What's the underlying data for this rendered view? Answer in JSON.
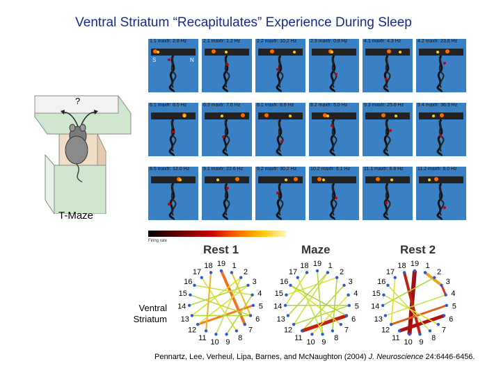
{
  "title": "Ventral Striatum “Recapitulates” Experience During Sleep",
  "maze_label": "T-Maze",
  "maze_question": "?",
  "grid_direction_labels": [
    "S",
    "N"
  ],
  "place_cells": [
    "1.1 maxfr: 2.8 Hz",
    "2.1 maxfr: 1.2 Hz",
    "2.2 maxfr: 10.2 Hz",
    "2.3 maxfr: 0.8 Hz",
    "4.1 maxfr: 4.3 Hz",
    "4.2 maxfr: 23.6 Hz",
    "6.1 maxfr: 8.5 Hz",
    "6.3 maxfr: 7.6 Hz",
    "8.1 maxfr: 8.8 Hz",
    "8.2 maxfr: 5.0 Hz",
    "9.3 maxfr: 25.6 Hz",
    "9.4 maxfr: 36.3 Hz",
    "8.5 maxfr: 12.0 Hz",
    "9.1 maxfr: 22.6 Hz",
    "9.2 maxfr: 30.2 Hz",
    "10.2 maxfr: 6.1 Hz",
    "11.1 maxfr: 6.8 Hz",
    "11.2 maxfr: 6.0 Hz"
  ],
  "colorbar_label": "Firing rate",
  "networks": [
    "Rest 1",
    "Maze",
    "Rest 2"
  ],
  "ventral_striatum_label": [
    "Ventral",
    "Striatum"
  ],
  "cell_numbers": [
    "19",
    "1",
    "2",
    "3",
    "4",
    "5",
    "6",
    "7",
    "8",
    "9",
    "10",
    "11",
    "12",
    "13",
    "14",
    "15",
    "16",
    "17",
    "18"
  ],
  "citation_authors": "Pennartz, Lee, Verheul, Lipa, Barnes, and McNaughton (2004)",
  "citation_journal": "J. Neuroscience",
  "citation_ref": "24:6446-6456.",
  "colors": {
    "title": "#1a2a8c",
    "field": "#3a80c4",
    "node": "#2a5ad8"
  }
}
